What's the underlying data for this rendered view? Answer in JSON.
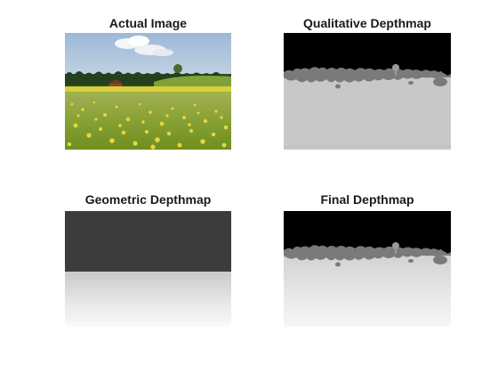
{
  "figure": {
    "panels": [
      {
        "title": "Actual Image",
        "image": "meadow-landscape-photo"
      },
      {
        "title": "Qualitative Depthmap",
        "image": "qualitative-depth-segmentation"
      },
      {
        "title": "Geometric Depthmap",
        "image": "geometric-depth-gradient"
      },
      {
        "title": "Final Depthmap",
        "image": "final-depth-composite"
      }
    ],
    "colors": {
      "sky": "#a9c2dc",
      "field": "#8aa72a",
      "flowers": "#e8d640",
      "depth_far": "#000000",
      "depth_mid": "#7a7a7a",
      "depth_near": "#c8c8c8",
      "geometric_dark": "#3c3c3c"
    }
  }
}
